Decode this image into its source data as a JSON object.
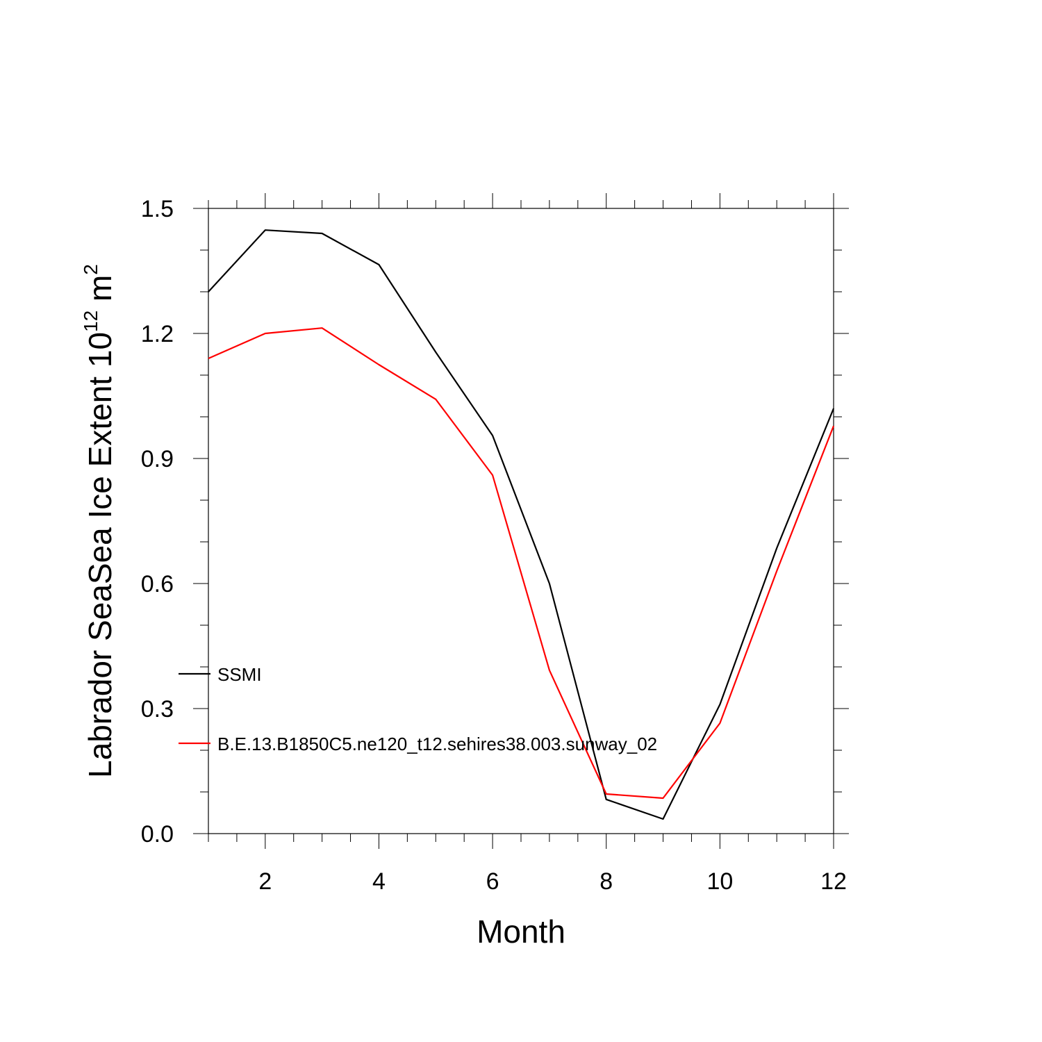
{
  "chart_data": {
    "type": "line",
    "title": "",
    "xlabel": "Month",
    "ylabel": {
      "prefix": "Labrador SeaSea Ice Extent 10",
      "superscript": "12",
      "unit": " m",
      "unit_superscript": "2"
    },
    "xlim": [
      1,
      12
    ],
    "ylim": [
      0.0,
      1.5
    ],
    "x_ticks": [
      2,
      4,
      6,
      8,
      10,
      12
    ],
    "x_tick_labels": [
      "2",
      "4",
      "6",
      "8",
      "10",
      "12"
    ],
    "y_ticks": [
      0.0,
      0.3,
      0.6,
      0.9,
      1.2,
      1.5
    ],
    "y_tick_labels": [
      "0.0",
      "0.3",
      "0.6",
      "0.9",
      "1.2",
      "1.5"
    ],
    "grid": false,
    "legend_position": "lower-left",
    "x": [
      1,
      2,
      3,
      4,
      5,
      6,
      7,
      8,
      9,
      10,
      11,
      12
    ],
    "series": [
      {
        "name": "SSMI",
        "color": "#000000",
        "values": [
          1.3,
          1.448,
          1.44,
          1.365,
          1.155,
          0.955,
          0.6,
          0.082,
          0.035,
          0.31,
          0.685,
          1.02
        ]
      },
      {
        "name": "B.E.13.B1850C5.ne120_t12.sehires38.003.sunway_02",
        "color": "#ff0000",
        "values": [
          1.14,
          1.2,
          1.213,
          1.125,
          1.042,
          0.86,
          0.392,
          0.095,
          0.085,
          0.265,
          0.63,
          0.978
        ]
      }
    ]
  }
}
